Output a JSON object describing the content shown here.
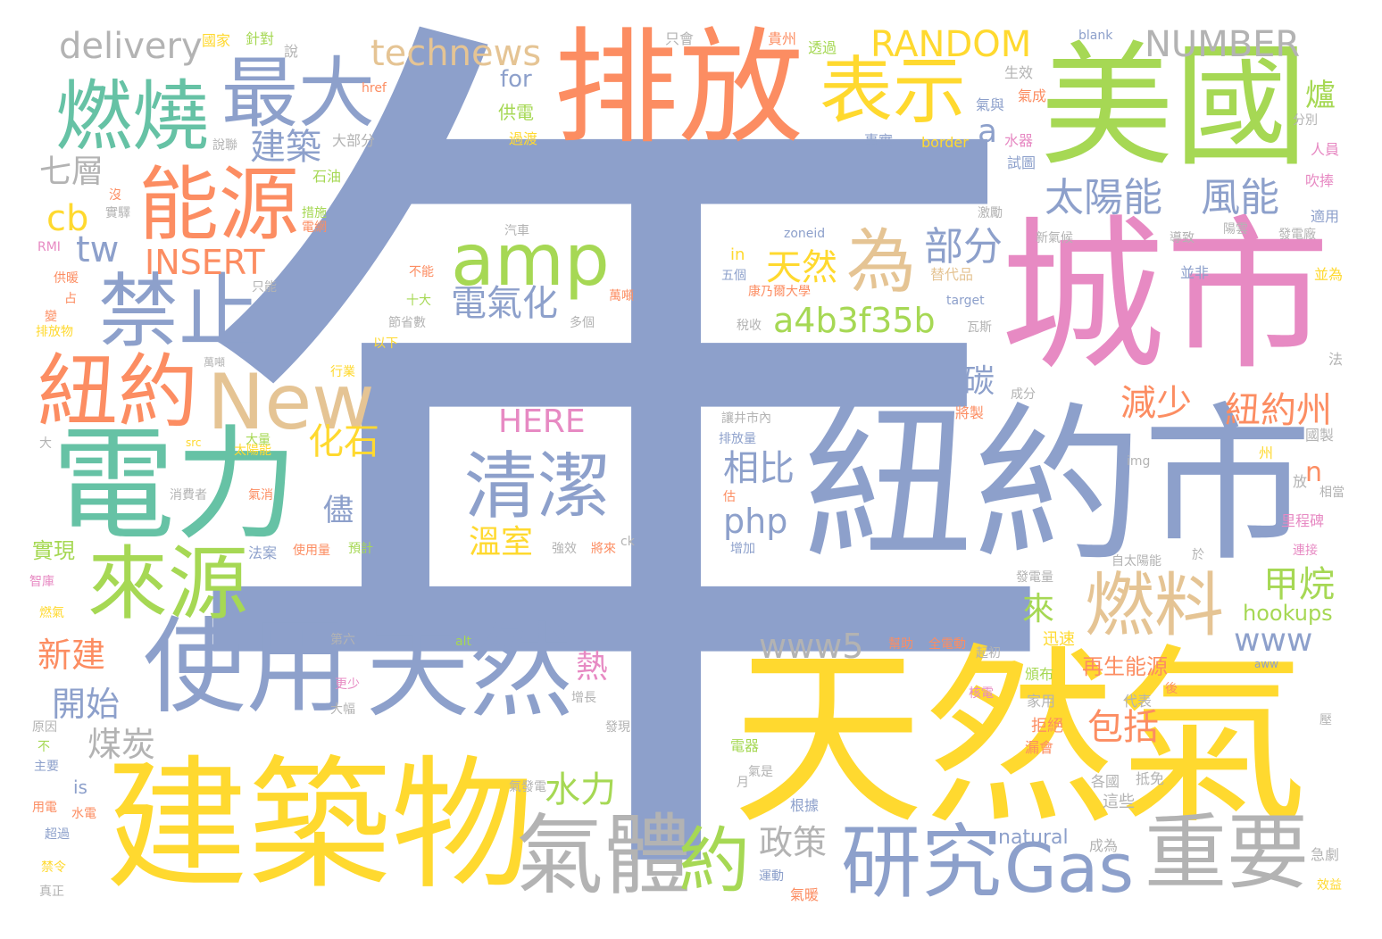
{
  "palette": {
    "blue": "#8da0cb",
    "yellow": "#ffd92f",
    "green": "#a6d854",
    "orange": "#fc8d62",
    "pink": "#e78ac3",
    "teal": "#66c2a5",
    "tan": "#e5c494",
    "gray": "#b3b3b3"
  },
  "words": [
    {
      "text": "年",
      "color": "blue"
    },
    {
      "text": "天然氣",
      "color": "yellow"
    },
    {
      "text": "紐約市",
      "color": "blue"
    },
    {
      "text": "城市",
      "color": "pink"
    },
    {
      "text": "建築物",
      "color": "yellow"
    },
    {
      "text": "美國",
      "color": "green"
    },
    {
      "text": "排放",
      "color": "orange"
    },
    {
      "text": "電力",
      "color": "teal"
    },
    {
      "text": "使用",
      "color": "blue"
    },
    {
      "text": "天然",
      "color": "blue"
    },
    {
      "text": "氣體",
      "color": "gray"
    },
    {
      "text": "重要",
      "color": "gray"
    },
    {
      "text": "研究",
      "color": "blue"
    },
    {
      "text": "燃燒",
      "color": "teal"
    },
    {
      "text": "能源",
      "color": "orange"
    },
    {
      "text": "禁止",
      "color": "blue"
    },
    {
      "text": "紐約",
      "color": "orange"
    },
    {
      "text": "來源",
      "color": "green"
    },
    {
      "text": "最大",
      "color": "blue"
    },
    {
      "text": "表示",
      "color": "yellow"
    },
    {
      "text": "New",
      "color": "tan"
    },
    {
      "text": "amp",
      "color": "green"
    },
    {
      "text": "清潔",
      "color": "blue"
    },
    {
      "text": "燃料",
      "color": "tan"
    },
    {
      "text": "Gas",
      "color": "blue"
    },
    {
      "text": "約",
      "color": "green"
    },
    {
      "text": "為",
      "color": "tan"
    },
    {
      "text": "太陽能",
      "color": "blue"
    },
    {
      "text": "風能",
      "color": "blue"
    },
    {
      "text": "RANDOM",
      "color": "yellow"
    },
    {
      "text": "NUMBER",
      "color": "gray"
    },
    {
      "text": "technews",
      "color": "tan"
    },
    {
      "text": "delivery",
      "color": "gray"
    },
    {
      "text": "INSERT",
      "color": "orange"
    },
    {
      "text": "HERE",
      "color": "pink"
    },
    {
      "text": "a4b3f35b",
      "color": "green"
    },
    {
      "text": "www5",
      "color": "gray"
    },
    {
      "text": "www",
      "color": "blue"
    },
    {
      "text": "php",
      "color": "blue"
    },
    {
      "text": "部分",
      "color": "blue"
    },
    {
      "text": "天然",
      "color": "yellow"
    },
    {
      "text": "電氣化",
      "color": "blue"
    },
    {
      "text": "建築",
      "color": "blue"
    },
    {
      "text": "化石",
      "color": "yellow"
    },
    {
      "text": "相比",
      "color": "blue"
    },
    {
      "text": "減少",
      "color": "orange"
    },
    {
      "text": "紐約州",
      "color": "orange"
    },
    {
      "text": "甲烷",
      "color": "green"
    },
    {
      "text": "包括",
      "color": "orange"
    },
    {
      "text": "水力",
      "color": "green"
    },
    {
      "text": "政策",
      "color": "gray"
    },
    {
      "text": "溫室",
      "color": "yellow"
    },
    {
      "text": "七層",
      "color": "gray"
    },
    {
      "text": "碳",
      "color": "blue"
    },
    {
      "text": "爐",
      "color": "green"
    },
    {
      "text": "來",
      "color": "green"
    },
    {
      "text": "熱",
      "color": "pink"
    },
    {
      "text": "儘",
      "color": "blue"
    },
    {
      "text": "新建",
      "color": "orange"
    },
    {
      "text": "開始",
      "color": "blue"
    },
    {
      "text": "煤炭",
      "color": "gray"
    },
    {
      "text": "實現",
      "color": "green"
    },
    {
      "text": "cb",
      "color": "yellow"
    },
    {
      "text": "tw",
      "color": "blue"
    },
    {
      "text": "a",
      "color": "blue"
    },
    {
      "text": "n",
      "color": "orange"
    },
    {
      "text": "hookups",
      "color": "green"
    },
    {
      "text": "再生能源",
      "color": "orange"
    },
    {
      "text": "natural",
      "color": "blue"
    },
    {
      "text": "for",
      "color": "blue"
    },
    {
      "text": "is",
      "color": "blue"
    },
    {
      "text": "in",
      "color": "yellow"
    },
    {
      "text": "供電",
      "color": "green"
    },
    {
      "text": "石油",
      "color": "green"
    },
    {
      "text": "過渡",
      "color": "yellow"
    },
    {
      "text": "大部分",
      "color": "gray"
    },
    {
      "text": "說",
      "color": "gray"
    },
    {
      "text": "國家",
      "color": "yellow"
    },
    {
      "text": "針對",
      "color": "green"
    },
    {
      "text": "只會",
      "color": "gray"
    },
    {
      "text": "貴州",
      "color": "orange"
    },
    {
      "text": "透過",
      "color": "green"
    },
    {
      "text": "blank",
      "color": "blue"
    },
    {
      "text": "生效",
      "color": "gray"
    },
    {
      "text": "氣成",
      "color": "orange"
    },
    {
      "text": "氣與",
      "color": "blue"
    },
    {
      "text": "分別",
      "color": "gray"
    },
    {
      "text": "水器",
      "color": "pink"
    },
    {
      "text": "事實",
      "color": "blue"
    },
    {
      "text": "border",
      "color": "yellow"
    },
    {
      "text": "人員",
      "color": "pink"
    },
    {
      "text": "試圖",
      "color": "blue"
    },
    {
      "text": "吹捧",
      "color": "pink"
    },
    {
      "text": "激勵",
      "color": "gray"
    },
    {
      "text": "適用",
      "color": "blue"
    },
    {
      "text": "新氣候",
      "color": "gray"
    },
    {
      "text": "導致",
      "color": "gray"
    },
    {
      "text": "陽雲",
      "color": "gray"
    },
    {
      "text": "發電廠",
      "color": "gray"
    },
    {
      "text": "並非",
      "color": "blue"
    },
    {
      "text": "並為",
      "color": "yellow"
    },
    {
      "text": "zoneid",
      "color": "blue"
    },
    {
      "text": "替代品",
      "color": "tan"
    },
    {
      "text": "target",
      "color": "blue"
    },
    {
      "text": "瓦斯",
      "color": "gray"
    },
    {
      "text": "法",
      "color": "gray"
    },
    {
      "text": "成分",
      "color": "gray"
    },
    {
      "text": "將製",
      "color": "orange"
    },
    {
      "text": "國製",
      "color": "gray"
    },
    {
      "text": "州",
      "color": "yellow"
    },
    {
      "text": "放",
      "color": "gray"
    },
    {
      "text": "相當",
      "color": "gray"
    },
    {
      "text": "里程碑",
      "color": "pink"
    },
    {
      "text": "連接",
      "color": "pink"
    },
    {
      "text": "img",
      "color": "gray"
    },
    {
      "text": "自太陽能",
      "color": "gray"
    },
    {
      "text": "於",
      "color": "gray"
    },
    {
      "text": "發電量",
      "color": "gray"
    },
    {
      "text": "迅速",
      "color": "yellow"
    },
    {
      "text": "aww",
      "color": "blue"
    },
    {
      "text": "後",
      "color": "orange"
    },
    {
      "text": "壓",
      "color": "gray"
    },
    {
      "text": "代表",
      "color": "gray"
    },
    {
      "text": "家用",
      "color": "gray"
    },
    {
      "text": "核電",
      "color": "pink"
    },
    {
      "text": "頒布",
      "color": "green"
    },
    {
      "text": "拒絕",
      "color": "orange"
    },
    {
      "text": "漏會",
      "color": "orange"
    },
    {
      "text": "各國",
      "color": "gray"
    },
    {
      "text": "抵免",
      "color": "gray"
    },
    {
      "text": "這些",
      "color": "gray"
    },
    {
      "text": "成為",
      "color": "gray"
    },
    {
      "text": "急劇",
      "color": "gray"
    },
    {
      "text": "效益",
      "color": "yellow"
    },
    {
      "text": "根據",
      "color": "blue"
    },
    {
      "text": "氣暖",
      "color": "orange"
    },
    {
      "text": "運動",
      "color": "blue"
    },
    {
      "text": "氣是",
      "color": "gray"
    },
    {
      "text": "電器",
      "color": "green"
    },
    {
      "text": "月",
      "color": "gray"
    },
    {
      "text": "氣發電",
      "color": "gray"
    },
    {
      "text": "發現",
      "color": "gray"
    },
    {
      "text": "增長",
      "color": "gray"
    },
    {
      "text": "起初",
      "color": "gray"
    },
    {
      "text": "幫助",
      "color": "orange"
    },
    {
      "text": "全電動",
      "color": "orange"
    },
    {
      "text": "alt",
      "color": "green"
    },
    {
      "text": "第六",
      "color": "gray"
    },
    {
      "text": "更少",
      "color": "pink"
    },
    {
      "text": "大幅",
      "color": "gray"
    },
    {
      "text": "ck",
      "color": "gray"
    },
    {
      "text": "將來",
      "color": "orange"
    },
    {
      "text": "強效",
      "color": "gray"
    },
    {
      "text": "增加",
      "color": "blue"
    },
    {
      "text": "估",
      "color": "orange"
    },
    {
      "text": "排放量",
      "color": "blue"
    },
    {
      "text": "讓井市內",
      "color": "gray"
    },
    {
      "text": "使用量",
      "color": "orange"
    },
    {
      "text": "預計",
      "color": "green"
    },
    {
      "text": "法案",
      "color": "blue"
    },
    {
      "text": "行業",
      "color": "yellow"
    },
    {
      "text": "氣消",
      "color": "orange"
    },
    {
      "text": "太陽能",
      "color": "yellow"
    },
    {
      "text": "大量",
      "color": "green"
    },
    {
      "text": "消費者",
      "color": "gray"
    },
    {
      "text": "src",
      "color": "yellow"
    },
    {
      "text": "以下",
      "color": "yellow"
    },
    {
      "text": "節省數",
      "color": "gray"
    },
    {
      "text": "十大",
      "color": "green"
    },
    {
      "text": "不能",
      "color": "orange"
    },
    {
      "text": "多個",
      "color": "gray"
    },
    {
      "text": "萬噸",
      "color": "orange"
    },
    {
      "text": "五個",
      "color": "blue"
    },
    {
      "text": "康乃爾大學",
      "color": "orange"
    },
    {
      "text": "稅收",
      "color": "gray"
    },
    {
      "text": "汽車",
      "color": "gray"
    },
    {
      "text": "措施",
      "color": "green"
    },
    {
      "text": "電網",
      "color": "orange"
    },
    {
      "text": "說聯",
      "color": "gray"
    },
    {
      "text": "href",
      "color": "orange"
    },
    {
      "text": "只能",
      "color": "gray"
    },
    {
      "text": "RMI",
      "color": "pink"
    },
    {
      "text": "供暖",
      "color": "orange"
    },
    {
      "text": "占",
      "color": "orange"
    },
    {
      "text": "變",
      "color": "orange"
    },
    {
      "text": "排放物",
      "color": "yellow"
    },
    {
      "text": "萬噸",
      "color": "gray"
    },
    {
      "text": "沒",
      "color": "orange"
    },
    {
      "text": "實驛",
      "color": "gray"
    },
    {
      "text": "大",
      "color": "gray"
    },
    {
      "text": "智庫",
      "color": "pink"
    },
    {
      "text": "燃氣",
      "color": "yellow"
    },
    {
      "text": "原因",
      "color": "gray"
    },
    {
      "text": "不",
      "color": "green"
    },
    {
      "text": "主要",
      "color": "blue"
    },
    {
      "text": "用電",
      "color": "orange"
    },
    {
      "text": "水電",
      "color": "orange"
    },
    {
      "text": "超過",
      "color": "blue"
    },
    {
      "text": "禁令",
      "color": "yellow"
    },
    {
      "text": "真正",
      "color": "gray"
    }
  ]
}
